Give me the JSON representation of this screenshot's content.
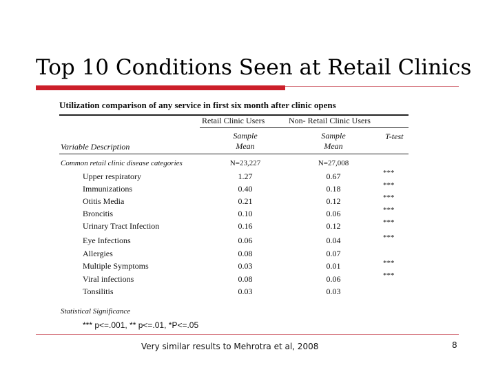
{
  "slide": {
    "title": "Top 10 Conditions Seen at Retail Clinics",
    "footer_note": "Very similar results to Mehrotra et al, 2008",
    "page_number": "8",
    "accent_color": "#cc1f2a"
  },
  "table": {
    "title": "Utilization comparison of any service in first six month after clinic opens",
    "group_headers": [
      "Retail Clinic Users",
      "Non- Retail Clinic Users"
    ],
    "col_headers": {
      "variable": "Variable Description",
      "sample_mean_1": "Sample\nMean",
      "sample_mean_2": "Sample\nMean",
      "ttest": "T-test"
    },
    "section_label": "Common retail clinic disease categories",
    "n1": "N=23,227",
    "n2": "N=27,008",
    "rows": [
      {
        "name": "Upper respiratory",
        "v1": "1.27",
        "v2": "0.67",
        "sig": "***"
      },
      {
        "name": "Immunizations",
        "v1": "0.40",
        "v2": "0.18",
        "sig": "***"
      },
      {
        "name": "Otitis Media",
        "v1": "0.21",
        "v2": "0.12",
        "sig": "***"
      },
      {
        "name": "Broncitis",
        "v1": "0.10",
        "v2": "0.06",
        "sig": "***"
      },
      {
        "name": "Urinary Tract Infection",
        "v1": "0.16",
        "v2": "0.12",
        "sig": "***"
      },
      {
        "name": "Eye Infections",
        "v1": "0.06",
        "v2": "0.04",
        "sig": "***"
      },
      {
        "name": "Allergies",
        "v1": "0.08",
        "v2": "0.07",
        "sig": ""
      },
      {
        "name": "Multiple Symptoms",
        "v1": "0.03",
        "v2": "0.01",
        "sig": "***"
      },
      {
        "name": "Viral infections",
        "v1": "0.08",
        "v2": "0.06",
        "sig": "***"
      },
      {
        "name": "Tonsilitis",
        "v1": "0.03",
        "v2": "0.03",
        "sig": ""
      }
    ],
    "stat_sig_label": "Statistical Significance",
    "stat_sig_legend": "*** p<=.001, ** p<=.01, *P<=.05"
  }
}
